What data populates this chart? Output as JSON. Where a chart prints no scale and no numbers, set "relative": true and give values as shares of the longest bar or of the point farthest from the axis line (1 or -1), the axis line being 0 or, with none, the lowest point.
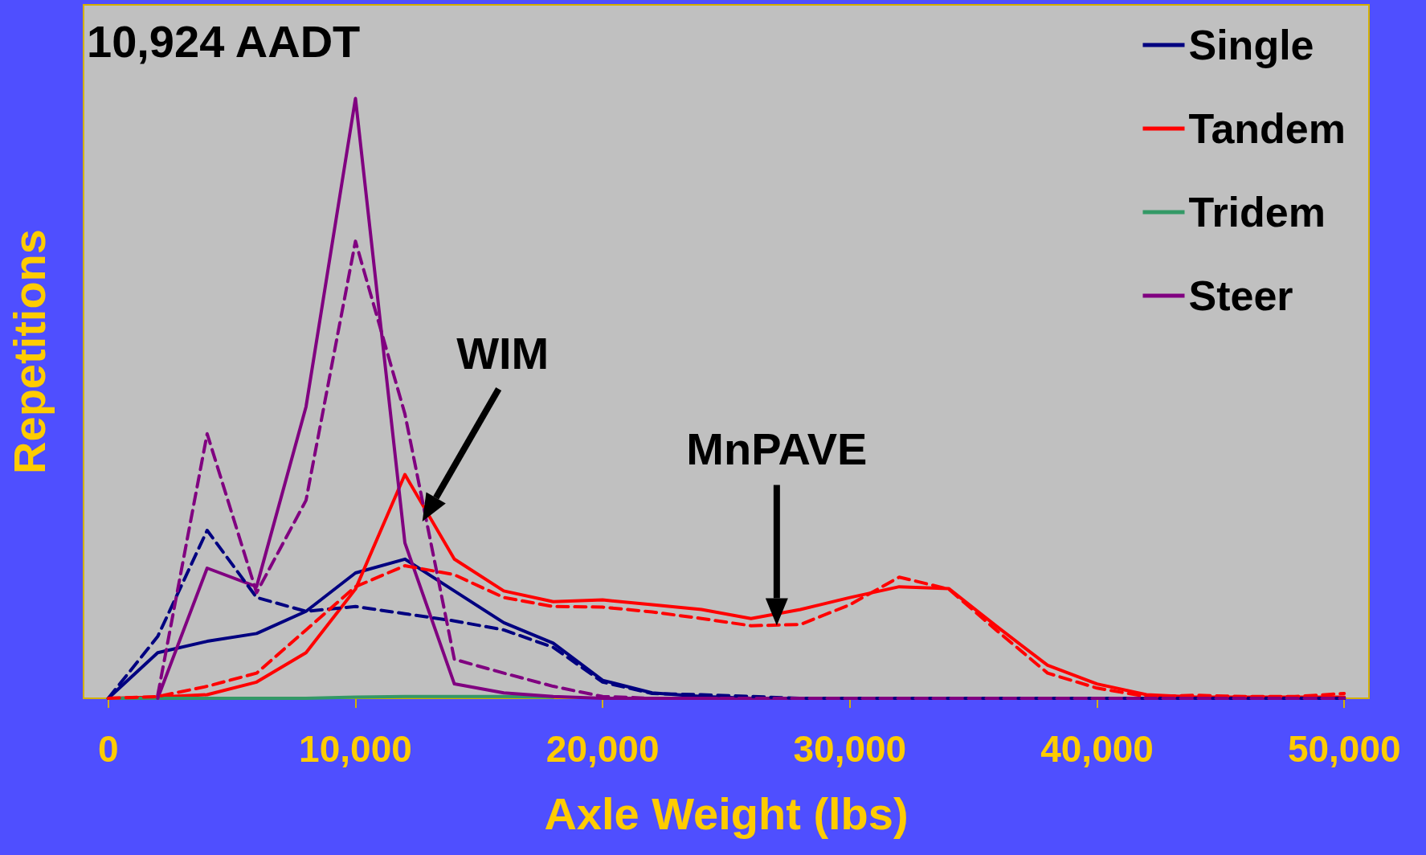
{
  "chart_data": {
    "type": "line",
    "title": "10,924 AADT",
    "xlabel": "Axle Weight (lbs)",
    "ylabel": "Repetitions",
    "relative": true,
    "legend": "top right",
    "grid": false,
    "marker": "none",
    "x": [
      0,
      2000,
      4000,
      6000,
      8000,
      10000,
      12000,
      14000,
      16000,
      18000,
      20000,
      22000,
      24000,
      26000,
      28000,
      30000,
      32000,
      34000,
      36000,
      38000,
      40000,
      42000,
      44000,
      46000,
      48000,
      50000
    ],
    "xlim": [
      -1000,
      51000
    ],
    "xticks": [
      {
        "value": 0,
        "label": "0"
      },
      {
        "value": 10000,
        "label": "10,000"
      },
      {
        "value": 20000,
        "label": "20,000"
      },
      {
        "value": 30000,
        "label": "30,000"
      },
      {
        "value": 40000,
        "label": "40,000"
      },
      {
        "value": 50000,
        "label": "50,000"
      }
    ],
    "series": [
      {
        "name": "Single",
        "color": "#000080",
        "line_style": "solid",
        "values": [
          0,
          0.076,
          0.095,
          0.108,
          0.145,
          0.209,
          0.232,
          0.179,
          0.126,
          0.092,
          0.03,
          0.009,
          0.003,
          0,
          0,
          0,
          0,
          0,
          0,
          0,
          0,
          0,
          0,
          0,
          0,
          0
        ]
      },
      {
        "name": "Tandem",
        "color": "#ff0000",
        "line_style": "solid",
        "values": [
          0,
          0.002,
          0.006,
          0.027,
          0.076,
          0.182,
          0.373,
          0.232,
          0.179,
          0.161,
          0.164,
          0.156,
          0.148,
          0.133,
          0.148,
          0.168,
          0.186,
          0.183,
          0.118,
          0.055,
          0.024,
          0.006,
          0.002,
          0.002,
          0.002,
          0.002
        ]
      },
      {
        "name": "Tridem",
        "color": "#339966",
        "line_style": "solid",
        "values": [
          0,
          0,
          0,
          0,
          0,
          0.002,
          0.003,
          0.003,
          0.003,
          0.002,
          null,
          null,
          null,
          null,
          null,
          null,
          null,
          null,
          null,
          null,
          null,
          null,
          null,
          null,
          null,
          null
        ]
      },
      {
        "name": "Steer",
        "color": "#800080",
        "line_style": "solid",
        "values": [
          null,
          0,
          0.217,
          0.186,
          0.486,
          1,
          0.259,
          0.024,
          0.009,
          0.003,
          0,
          0,
          0,
          0,
          0,
          0,
          0,
          0,
          0,
          0,
          0,
          0,
          0,
          0,
          0,
          0
        ]
      },
      {
        "color": "#000080",
        "line_style": "dashed",
        "values": [
          0,
          0.103,
          0.28,
          0.168,
          0.145,
          0.153,
          0.141,
          0.129,
          0.114,
          0.085,
          0.027,
          0.008,
          0.006,
          0.003,
          0,
          0,
          0,
          0,
          0,
          0,
          0,
          0,
          0,
          0,
          0,
          0
        ]
      },
      {
        "color": "#ff0000",
        "line_style": "dashed",
        "values": [
          0,
          0.003,
          0.02,
          0.042,
          0.114,
          0.186,
          0.221,
          0.206,
          0.168,
          0.153,
          0.152,
          0.144,
          0.133,
          0.121,
          0.123,
          0.156,
          0.202,
          0.182,
          0.111,
          0.042,
          0.017,
          0.003,
          0.005,
          0.003,
          0.003,
          0.008
        ]
      },
      {
        "color": "#800080",
        "line_style": "dashed",
        "values": [
          null,
          0.005,
          0.441,
          0.176,
          0.33,
          0.762,
          0.474,
          0.065,
          0.042,
          0.02,
          0.003,
          0,
          0,
          0,
          0,
          0,
          0,
          0,
          0,
          0,
          0,
          0,
          0,
          0,
          0,
          0
        ]
      }
    ],
    "annotations": [
      "WIM",
      "MnPAVE"
    ]
  }
}
